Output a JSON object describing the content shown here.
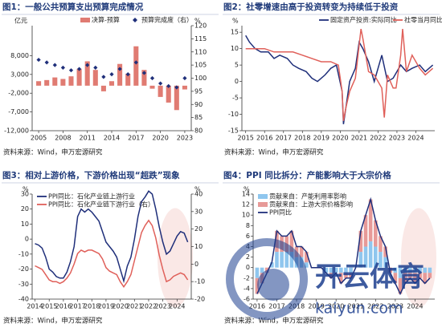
{
  "chart_data": [
    {
      "type": "combo",
      "title": "图1：一般公共预算支出预算完成情况",
      "source": "资料来源：Wind，申万宏源研究",
      "y_label": "亿元",
      "y2_label": "%",
      "legend": "top",
      "x": [
        2005,
        2006,
        2007,
        2008,
        2009,
        2010,
        2011,
        2012,
        2013,
        2014,
        2015,
        2016,
        2017,
        2018,
        2019,
        2020,
        2021,
        2022,
        2023
      ],
      "series": [
        {
          "name": "决算-预算",
          "type": "bar",
          "color": "#e07b72",
          "values": [
            1200,
            1500,
            2200,
            1800,
            2500,
            4500,
            6500,
            4200,
            -1500,
            1200,
            5800,
            3200,
            10500,
            4200,
            -800,
            -3000,
            -4500,
            -6500,
            -1000
          ]
        },
        {
          "name": "预算完成度（右）",
          "type": "scatter",
          "axis": "y2",
          "color": "#1f2f7a",
          "values": [
            107,
            106,
            105,
            104,
            103,
            103.5,
            105,
            104,
            100.5,
            101.5,
            103.5,
            101.5,
            106,
            102,
            100,
            98,
            97,
            96.5,
            100
          ]
        }
      ],
      "xlim": [
        2004.2,
        2023.8
      ],
      "xticks": [
        2005,
        2008,
        2011,
        2014,
        2017,
        2020,
        2023
      ],
      "ylim": [
        -12000,
        16000
      ],
      "yticks": [
        {
          "value": -12000,
          "label": "-12,000"
        },
        {
          "value": -7000,
          "label": "-7,000"
        },
        {
          "value": -2000,
          "label": "-2,000"
        },
        {
          "value": 3000,
          "label": "3,000"
        },
        {
          "value": 8000,
          "label": "8,000"
        }
      ],
      "y2lim": [
        80,
        120
      ],
      "y2ticks": [
        80,
        85,
        90,
        95,
        100,
        105,
        110,
        115,
        120
      ]
    },
    {
      "type": "line",
      "title": "图2：社零增速由高于投资转变为持续低于投资",
      "source": "资料来源：Wind，申万宏源研究",
      "y_label": "%",
      "legend": "top",
      "series": [
        {
          "name": "固定资产投资:实际同比",
          "type": "line",
          "color": "#1f2f7a",
          "x": [
            2015.0,
            2015.2,
            2015.5,
            2015.8,
            2016.2,
            2016.5,
            2016.8,
            2017.2,
            2017.5,
            2017.8,
            2018.2,
            2018.5,
            2018.8,
            2019.2,
            2019.5,
            2019.8,
            2020.1,
            2020.17,
            2020.3,
            2020.5,
            2020.8,
            2021.0,
            2021.2,
            2021.5,
            2021.8,
            2022.2,
            2022.5,
            2022.8,
            2023.2,
            2023.5,
            2023.8,
            2024.2,
            2024.5,
            2024.9
          ],
          "values": [
            14,
            12,
            10,
            9,
            9,
            7,
            8,
            7,
            5,
            4,
            3,
            1,
            0,
            2,
            4,
            5,
            -3,
            -13,
            -8,
            0,
            4,
            12,
            10,
            6,
            0,
            8,
            0,
            1,
            5,
            3,
            4,
            5,
            3,
            5
          ]
        },
        {
          "name": "社零当月同比:实际同比",
          "type": "line",
          "color": "#e0605a",
          "x": [
            2015.0,
            2015.5,
            2016.0,
            2016.5,
            2017.0,
            2017.5,
            2018.0,
            2018.5,
            2019.0,
            2019.5,
            2019.9,
            2020.1,
            2020.17,
            2020.3,
            2020.5,
            2020.8,
            2021.1,
            2021.2,
            2021.5,
            2021.8,
            2022.2,
            2022.33,
            2022.5,
            2022.8,
            2022.95,
            2023.2,
            2023.3,
            2023.5,
            2023.8,
            2024.2,
            2024.5,
            2024.9
          ],
          "values": [
            10,
            10,
            10,
            9,
            9,
            9,
            8,
            7,
            6,
            6,
            5,
            -3,
            -12,
            -8,
            -3,
            1,
            16,
            13,
            3,
            2,
            -2,
            -11,
            2,
            -2,
            -2,
            8,
            16,
            3,
            8,
            4,
            2,
            4
          ]
        }
      ],
      "xlim": [
        2014.8,
        2025.0
      ],
      "xticks": [
        2015,
        2016,
        2017,
        2018,
        2019,
        2020,
        2021,
        2022,
        2023,
        2024
      ],
      "ylim": [
        -15,
        17
      ],
      "yticks": [
        -15,
        -10,
        -5,
        0,
        5,
        10,
        15
      ]
    },
    {
      "type": "line",
      "title": "图3：相对上游价格，下游价格出现“超跌”现象",
      "source": "资料来源：Wind，申万宏源研究",
      "y_label": "%",
      "y2_label": "%",
      "legend": "top-left",
      "x": [
        2014,
        2014.25,
        2014.5,
        2014.75,
        2015,
        2015.25,
        2015.5,
        2015.75,
        2016,
        2016.25,
        2016.5,
        2016.75,
        2017,
        2017.25,
        2017.5,
        2017.75,
        2018,
        2018.25,
        2018.5,
        2018.75,
        2019,
        2019.25,
        2019.5,
        2019.75,
        2020,
        2020.25,
        2020.5,
        2020.75,
        2021,
        2021.25,
        2021.5,
        2021.75,
        2022,
        2022.25,
        2022.5,
        2022.75,
        2023,
        2023.25,
        2023.5,
        2023.75,
        2024,
        2024.25,
        2024.5,
        2024.75
      ],
      "series": [
        {
          "name": "PPI同比：石化产业链上游行业",
          "type": "line",
          "color": "#1f2f7a",
          "values": [
            -3,
            -4,
            -6,
            -12,
            -20,
            -22,
            -25,
            -26,
            -26,
            -22,
            -15,
            -5,
            15,
            20,
            18,
            20,
            18,
            15,
            12,
            5,
            -2,
            -5,
            -8,
            -12,
            -20,
            -28,
            -18,
            -12,
            0,
            15,
            25,
            28,
            32,
            30,
            20,
            8,
            -2,
            -10,
            -8,
            -3,
            2,
            5,
            4,
            -2
          ]
        },
        {
          "name": "PPI同比：石化产业链下游行业（右）",
          "type": "line",
          "axis": "y2",
          "color": "#e0605a",
          "values": [
            -1,
            -2,
            -3,
            -6,
            -9,
            -10,
            -10,
            -11,
            -10,
            -8,
            -5,
            0,
            6,
            8,
            7,
            8,
            8,
            7,
            6,
            3,
            -2,
            -4,
            -5,
            -6,
            -10,
            -13,
            -10,
            -6,
            2,
            10,
            18,
            22,
            25,
            22,
            15,
            5,
            -3,
            -10,
            -9,
            -7,
            -6,
            -5,
            -6,
            -9
          ]
        }
      ],
      "xlim": [
        2013.8,
        2025.0
      ],
      "xticks": [
        2014,
        2015,
        2016,
        2017,
        2018,
        2019,
        2020,
        2021,
        2022,
        2023,
        2024
      ],
      "ylim": [
        -40,
        30
      ],
      "yticks": [
        -40,
        -30,
        -20,
        -10,
        0,
        10,
        20,
        30
      ],
      "y2lim": [
        -20,
        40
      ],
      "y2ticks": [
        -20,
        -10,
        0,
        10,
        20,
        30,
        40
      ]
    },
    {
      "type": "combo",
      "stacked": true,
      "title": "图4：PPI 同比拆分：产能影响大于大宗价格",
      "source": "资料来源：Wind，申万宏源研究",
      "y_label": "%",
      "legend": "top-left",
      "x": [
        2016,
        2016.25,
        2016.5,
        2016.75,
        2017,
        2017.25,
        2017.5,
        2017.75,
        2018,
        2018.25,
        2018.5,
        2018.75,
        2019,
        2019.25,
        2019.5,
        2019.75,
        2020,
        2020.25,
        2020.5,
        2020.75,
        2021,
        2021.25,
        2021.5,
        2021.75,
        2022,
        2022.25,
        2022.5,
        2022.75,
        2023,
        2023.25,
        2023.5,
        2023.75,
        2024,
        2024.25,
        2024.5,
        2024.75
      ],
      "series": [
        {
          "name": "贡献来自：产能利用率影响",
          "type": "bar",
          "color": "#8fc6ee",
          "values": [
            -2,
            -1,
            0,
            1,
            3,
            3,
            3,
            3,
            2,
            2,
            1,
            0,
            0,
            0,
            -1,
            -1,
            -1,
            -1,
            -1,
            -1,
            0,
            3,
            4,
            5,
            4,
            3,
            2,
            0,
            -1,
            -2,
            -1,
            -1,
            -1,
            -1,
            -1,
            -1
          ]
        },
        {
          "name": "贡献来自：上游大宗价格影响",
          "type": "bar",
          "color": "#e79a98",
          "values": [
            -3,
            -2,
            -1,
            0,
            4,
            3,
            3,
            4,
            2,
            2,
            2,
            0,
            0,
            0,
            0,
            -1,
            0,
            -2,
            -1,
            -1,
            0,
            4,
            6,
            8,
            5,
            3,
            2,
            -1,
            -2,
            -3,
            -2,
            -1,
            -2,
            -1,
            -2,
            -1
          ]
        },
        {
          "name": "PPI同比",
          "type": "line",
          "color": "#1f2f7a",
          "values": [
            -5,
            -3,
            -1,
            1,
            7,
            6,
            6,
            7,
            4,
            4,
            3,
            0,
            0,
            0,
            -1,
            -2,
            -1,
            -3,
            -2,
            -2,
            0,
            7,
            10,
            13,
            9,
            6,
            4,
            -1,
            -3,
            -5,
            -3,
            -2,
            -3,
            -2,
            -3,
            -2
          ]
        }
      ],
      "xlim": [
        2015.8,
        2025.0
      ],
      "xticks": [
        2016,
        2017,
        2018,
        2019,
        2020,
        2021,
        2022,
        2023,
        2024
      ],
      "ylim": [
        -6,
        14
      ],
      "yticks": [
        -6,
        -4,
        -2,
        0,
        2,
        4,
        6,
        8,
        10,
        12,
        14
      ]
    }
  ],
  "watermark": {
    "name": "开云体育",
    "url": "kaiyun.com"
  }
}
